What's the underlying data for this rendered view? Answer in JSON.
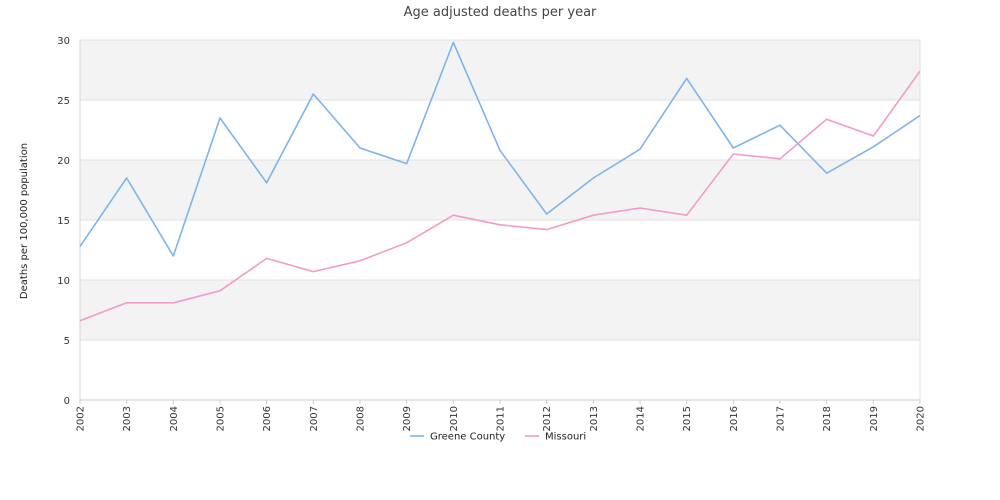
{
  "chart_data": {
    "type": "line",
    "title": "Age adjusted deaths per year",
    "xlabel": "",
    "ylabel": "Deaths per 100,000 population",
    "categories": [
      "2002",
      "2003",
      "2004",
      "2005",
      "2006",
      "2007",
      "2008",
      "2009",
      "2010",
      "2011",
      "2012",
      "2013",
      "2014",
      "2015",
      "2016",
      "2017",
      "2018",
      "2019",
      "2020"
    ],
    "ylim": [
      0,
      30
    ],
    "yticks": [
      0,
      5,
      10,
      15,
      20,
      25,
      30
    ],
    "grid": "alternating horizontal bands",
    "legend_position": "bottom",
    "series": [
      {
        "name": "Greene County",
        "color": "#7cb5ec",
        "values": [
          12.8,
          18.5,
          12.0,
          23.5,
          18.1,
          25.5,
          21.0,
          19.7,
          29.8,
          20.8,
          15.5,
          18.5,
          20.9,
          26.8,
          21.0,
          22.9,
          18.9,
          21.1,
          23.7
        ]
      },
      {
        "name": "Missouri",
        "color": "#f39ac7",
        "values": [
          6.6,
          8.1,
          8.1,
          9.1,
          11.8,
          10.7,
          11.6,
          13.1,
          15.4,
          14.6,
          14.2,
          15.4,
          16.0,
          15.4,
          20.5,
          20.1,
          23.4,
          22.0,
          27.4
        ]
      }
    ]
  }
}
